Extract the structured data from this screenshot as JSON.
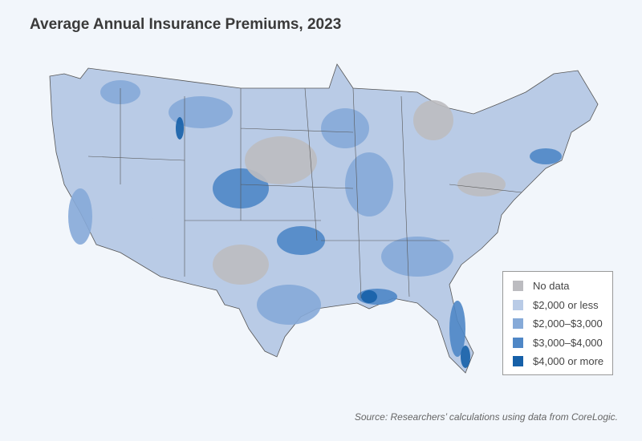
{
  "title": "Average Annual Insurance Premiums, 2023",
  "legend": {
    "items": [
      {
        "label": "No data",
        "color": "#bcbcc0"
      },
      {
        "label": "$2,000 or less",
        "color": "#b9cbe6"
      },
      {
        "label": "$2,000–$3,000",
        "color": "#86aad8"
      },
      {
        "label": "$3,000–$4,000",
        "color": "#4f87c6"
      },
      {
        "label": "$4,000 or more",
        "color": "#1660a8"
      }
    ]
  },
  "source": "Source: Researchers’ calculations using data from CoreLogic."
}
